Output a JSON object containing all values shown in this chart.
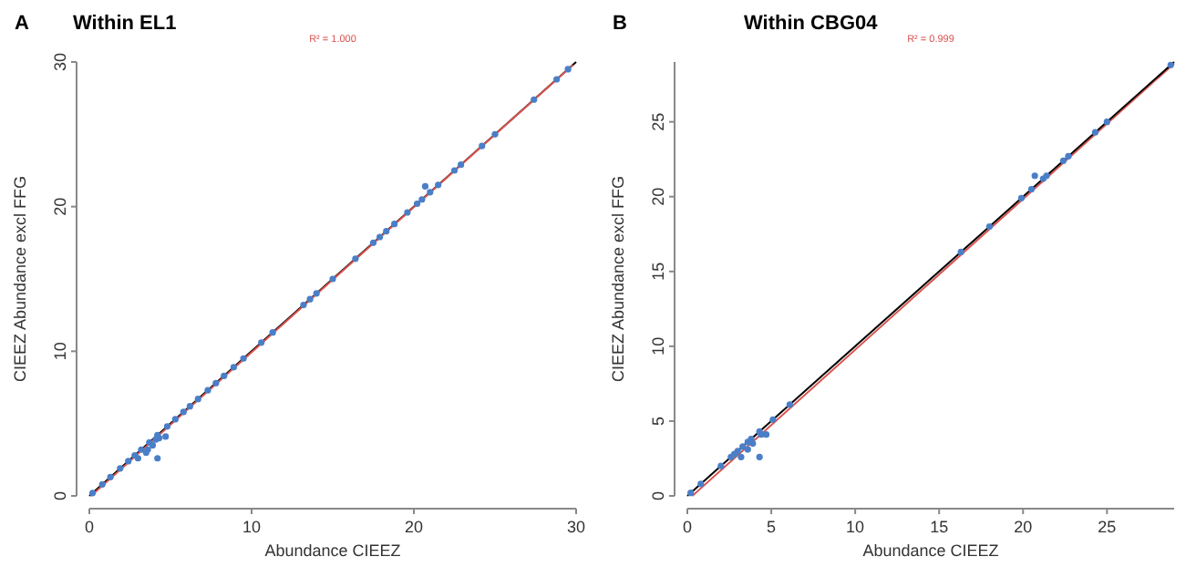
{
  "chart_data": [
    {
      "type": "scatter",
      "title": "Within EL1",
      "annotations": [
        "A",
        "R² = 1.000"
      ],
      "xlabel": "Abundance CIEEZ",
      "ylabel": "CIEEZ Abundance excl FFG",
      "xlim": [
        0,
        30
      ],
      "ylim": [
        0,
        30
      ],
      "xticks": [
        0,
        10,
        20,
        30
      ],
      "yticks": [
        0,
        10,
        20,
        30
      ],
      "grid": false,
      "series": [
        {
          "type": "line",
          "marker": "none",
          "color": "#000000",
          "x": [
            0,
            30
          ],
          "values": [
            0,
            30
          ]
        },
        {
          "type": "line",
          "marker": "none",
          "color": "#d9534f",
          "x": [
            0.1,
            29.8
          ],
          "values": [
            0,
            29.8
          ]
        },
        {
          "marker": "circle",
          "color": "#4a7fc8",
          "x": [
            0.2,
            0.8,
            1.3,
            1.9,
            2.4,
            2.8,
            3.2,
            3.7,
            4.2,
            4.8,
            5.3,
            5.8,
            6.2,
            6.7,
            7.3,
            7.8,
            8.3,
            8.9,
            9.5,
            10.6,
            11.3,
            13.2,
            13.6,
            14,
            15,
            16.4,
            17.5,
            17.9,
            18.3,
            18.8,
            19.6,
            20.2,
            20.5,
            21,
            21.5,
            22.5,
            22.9,
            24.2,
            25,
            27.4,
            28.8,
            29.5,
            3,
            3.5,
            3.6,
            4.2,
            4.3,
            4.7,
            4.1,
            3.9,
            20.7
          ],
          "values": [
            0.2,
            0.8,
            1.3,
            1.9,
            2.4,
            2.8,
            3.2,
            3.7,
            4.2,
            4.8,
            5.3,
            5.8,
            6.2,
            6.7,
            7.3,
            7.8,
            8.3,
            8.9,
            9.5,
            10.6,
            11.3,
            13.2,
            13.6,
            14,
            15,
            16.4,
            17.5,
            17.9,
            18.3,
            18.8,
            19.6,
            20.2,
            20.5,
            21,
            21.5,
            22.5,
            22.9,
            24.2,
            25,
            27.4,
            28.8,
            29.5,
            2.6,
            3,
            3.2,
            2.6,
            4,
            4.1,
            3.9,
            3.5,
            21.4
          ]
        }
      ]
    },
    {
      "type": "scatter",
      "title": "Within CBG04",
      "annotations": [
        "B",
        "R² = 0.999"
      ],
      "xlabel": "Abundance CIEEZ",
      "ylabel": "CIEEZ Abundance excl FFG",
      "xlim": [
        0,
        29
      ],
      "ylim": [
        0,
        29
      ],
      "xticks": [
        0,
        5,
        10,
        15,
        20,
        25
      ],
      "yticks": [
        0,
        5,
        10,
        15,
        20,
        25
      ],
      "grid": false,
      "series": [
        {
          "type": "line",
          "marker": "none",
          "color": "#d9534f",
          "x": [
            0.3,
            29
          ],
          "values": [
            0,
            28.9
          ]
        },
        {
          "type": "line",
          "marker": "none",
          "color": "#000000",
          "x": [
            0,
            29
          ],
          "values": [
            0,
            29
          ]
        },
        {
          "marker": "circle",
          "color": "#4a7fc8",
          "x": [
            0.2,
            0.8,
            2,
            2.6,
            2.8,
            3,
            3.3,
            3.6,
            3.8,
            4.3,
            5.1,
            6.1,
            16.3,
            18,
            19.9,
            20.5,
            21.2,
            21.4,
            22.4,
            22.7,
            24.3,
            25,
            28.8,
            3.2,
            3.9,
            3.6,
            4.3,
            4.4,
            4.7,
            20.7
          ],
          "values": [
            0.2,
            0.8,
            2,
            2.6,
            2.8,
            3,
            3.3,
            3.6,
            3.8,
            4.3,
            5.1,
            6.1,
            16.3,
            18,
            19.9,
            20.5,
            21.2,
            21.4,
            22.4,
            22.7,
            24.3,
            25,
            28.8,
            2.6,
            3.5,
            3.1,
            2.6,
            4.1,
            4.1,
            21.4
          ]
        }
      ]
    }
  ]
}
